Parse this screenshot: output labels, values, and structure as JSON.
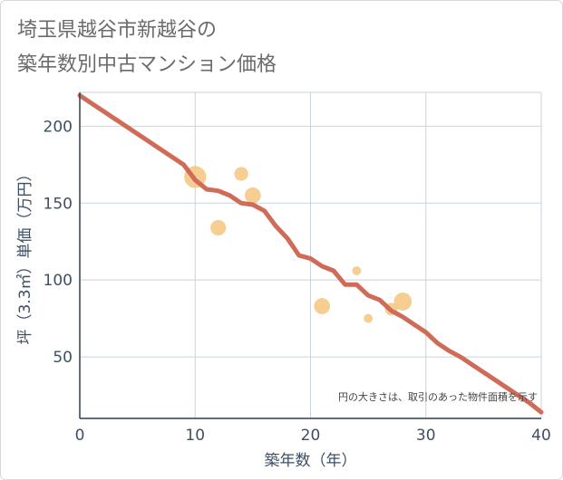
{
  "title_line1": "埼玉県越谷市新越谷の",
  "title_line2": "築年数別中古マンション価格",
  "chart_data": {
    "type": "scatter",
    "xlabel": "築年数（年）",
    "ylabel": "坪（3.3㎡）単価（万円）",
    "xlim": [
      0,
      40
    ],
    "ylim": [
      10,
      222
    ],
    "xticks": [
      0,
      10,
      20,
      30,
      40
    ],
    "yticks": [
      50,
      100,
      150,
      200
    ],
    "grid": true,
    "note": "円の大きさは、取引のあった物件面積を示す",
    "colors": {
      "bubble": "#f5c67f",
      "line": "#d06b58",
      "grid": "#c8d3e0",
      "text": "#3d4f63"
    },
    "bubbles": [
      {
        "x": 10,
        "y": 167,
        "size": 3.0
      },
      {
        "x": 12,
        "y": 134,
        "size": 1.5
      },
      {
        "x": 14,
        "y": 169,
        "size": 1.2
      },
      {
        "x": 15,
        "y": 155,
        "size": 1.6
      },
      {
        "x": 21,
        "y": 83,
        "size": 1.6
      },
      {
        "x": 24,
        "y": 106,
        "size": 0.5
      },
      {
        "x": 25,
        "y": 75,
        "size": 0.5
      },
      {
        "x": 27,
        "y": 81,
        "size": 1.0
      },
      {
        "x": 28,
        "y": 86,
        "size": 2.0
      }
    ],
    "trend_line": {
      "x": [
        0,
        9,
        10,
        11,
        12,
        13,
        14,
        15,
        16,
        17,
        18,
        19,
        20,
        21,
        22,
        23,
        24,
        25,
        26,
        27,
        28,
        29,
        30,
        31,
        32,
        33,
        34,
        35,
        36,
        37,
        38,
        39,
        40
      ],
      "y": [
        220,
        175,
        165,
        159,
        158,
        155,
        150,
        149,
        145,
        135,
        127,
        116,
        114,
        109,
        106,
        97,
        97,
        90,
        87,
        80,
        76,
        71,
        66,
        59,
        54,
        50,
        45,
        40,
        35,
        30,
        25,
        20,
        14
      ]
    }
  }
}
